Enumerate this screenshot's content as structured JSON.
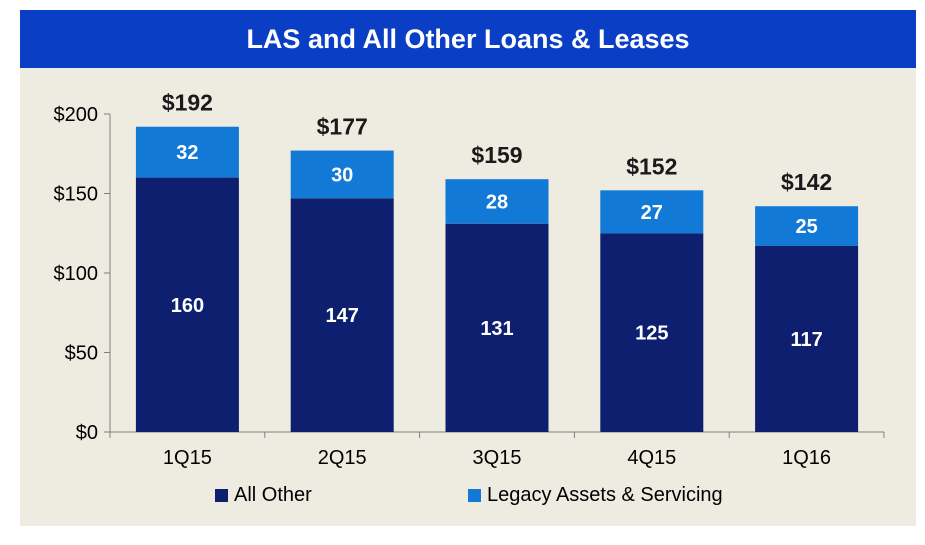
{
  "colors": {
    "title_bg": "#0a3ec4",
    "all_other": "#0d1f6e",
    "legacy": "#1279d6",
    "panel_bg": "#eeece1"
  },
  "chart_data": {
    "type": "bar",
    "stacked": true,
    "title": "LAS and All Other Loans & Leases",
    "categories": [
      "1Q15",
      "2Q15",
      "3Q15",
      "4Q15",
      "1Q16"
    ],
    "series": [
      {
        "name": "All Other",
        "values": [
          160,
          147,
          131,
          125,
          117
        ]
      },
      {
        "name": "Legacy Assets & Servicing",
        "values": [
          32,
          30,
          28,
          27,
          25
        ]
      }
    ],
    "series_labels": [
      [
        "160",
        "147",
        "131",
        "125",
        "117"
      ],
      [
        "32",
        "30",
        "28",
        "27",
        "25"
      ]
    ],
    "totals": [
      192,
      177,
      159,
      152,
      142
    ],
    "total_labels": [
      "$192",
      "$177",
      "$159",
      "$152",
      "$142"
    ],
    "ylim": [
      0,
      200
    ],
    "yticks": [
      0,
      50,
      100,
      150,
      200
    ],
    "ytick_labels": [
      "$0",
      "$50",
      "$100",
      "$150",
      "$200"
    ],
    "grid": false,
    "legend_position": "bottom"
  }
}
